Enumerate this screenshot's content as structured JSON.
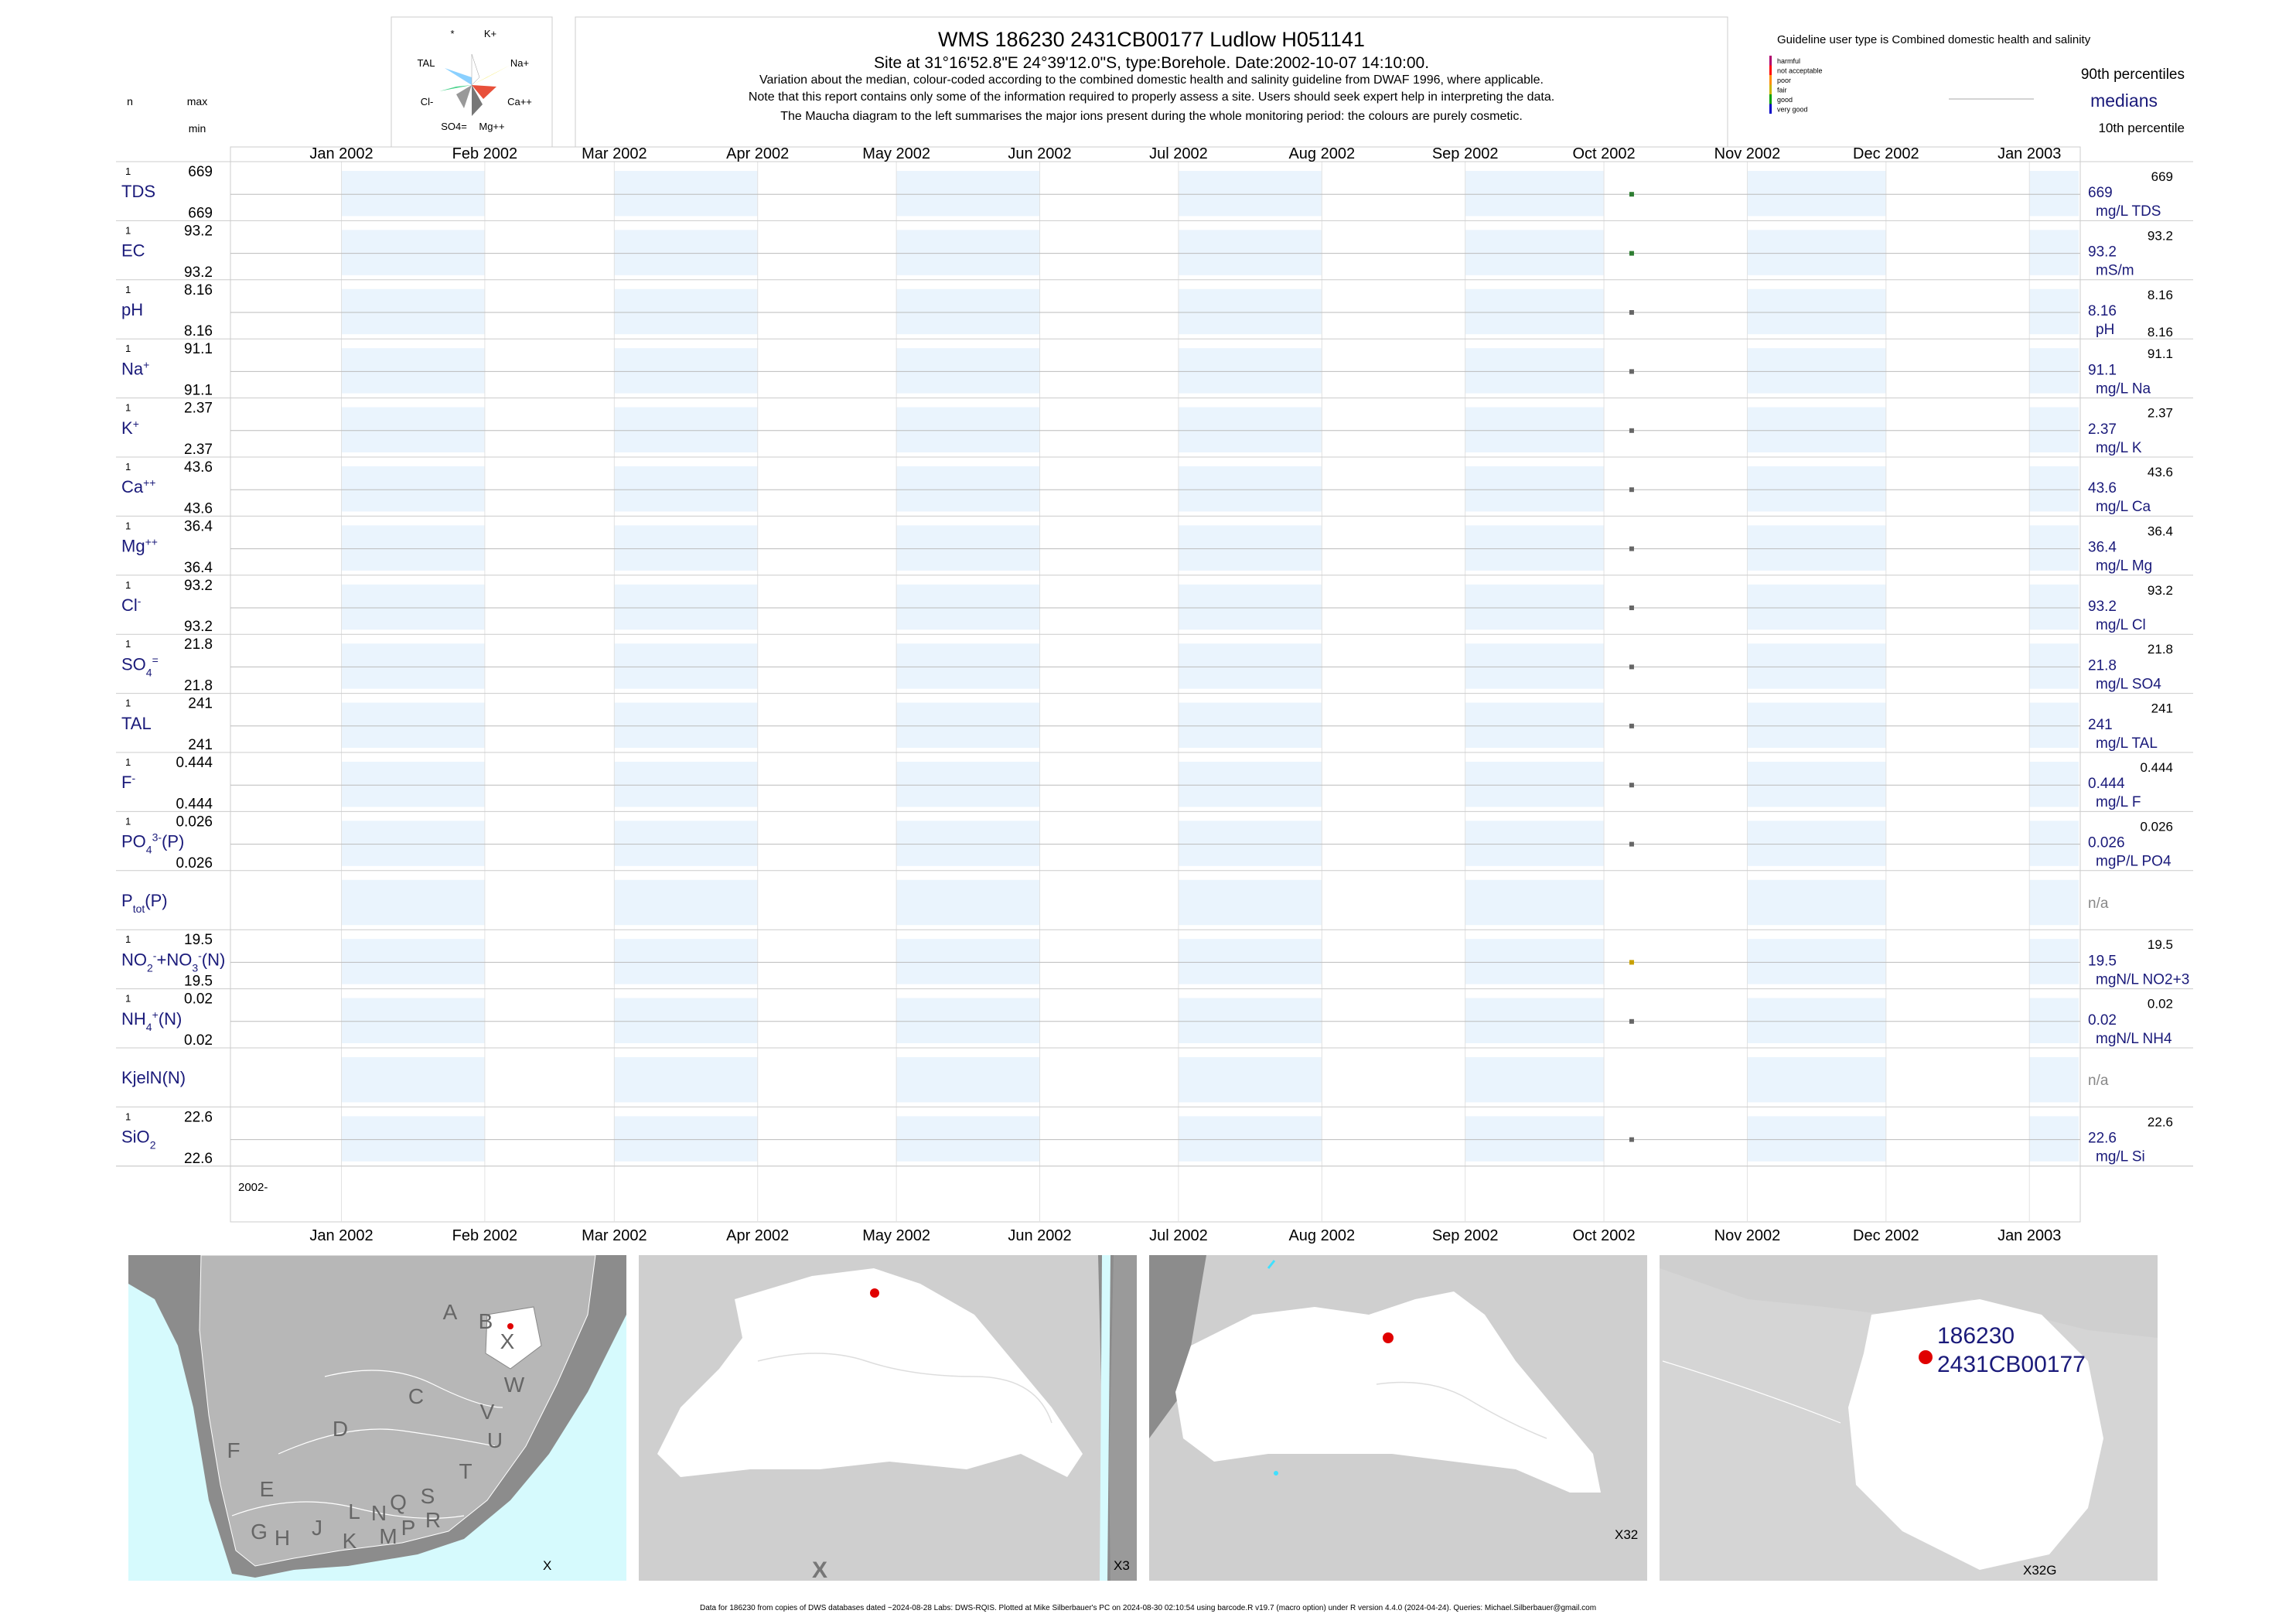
{
  "header": {
    "title": "WMS 186230 2431CB00177 Ludlow H051141",
    "subtitle": "Site at 31°16'52.8\"E 24°39'12.0\"S, type:Borehole. Date:2002-10-07 14:10:00.",
    "note1": "Variation about the median,  colour-coded according to the combined domestic health and salinity guideline from DWAF 1996, where applicable.",
    "note2": "Note that this report contains only some of the information required to properly assess a site. Users should seek expert help in interpreting the data.",
    "note3": "The Maucha diagram to the left summarises the major ions present during the whole monitoring period: the colours are purely cosmetic."
  },
  "maucha": {
    "labels": [
      "*",
      "K+",
      "TAL",
      "Na+",
      "Cl-",
      "Ca++",
      "SO4=",
      "Mg++"
    ]
  },
  "legend": {
    "guideline_text": "Guideline user type is Combined domestic health and salinity",
    "classes": [
      {
        "label": "harmful",
        "color": "#b0006e"
      },
      {
        "label": "not acceptable",
        "color": "#ff0000"
      },
      {
        "label": "poor",
        "color": "#ff8c00"
      },
      {
        "label": "fair",
        "color": "#c8b400"
      },
      {
        "label": "good",
        "color": "#00a000"
      },
      {
        "label": "very good",
        "color": "#0000c8"
      }
    ],
    "p90": "90th percentiles",
    "medians": "medians",
    "p10": "10th percentile"
  },
  "left_head": {
    "n": "n",
    "max": "max",
    "min": "min"
  },
  "chart_data": {
    "type": "scatter",
    "x_axis_labels": [
      "Jan 2002",
      "Feb 2002",
      "Mar 2002",
      "Apr 2002",
      "May 2002",
      "Jun 2002",
      "Jul 2002",
      "Aug 2002",
      "Sep 2002",
      "Oct 2002",
      "Nov 2002",
      "Dec 2002",
      "Jan 2003"
    ],
    "year_label": "2002-",
    "sample_date": "2002-10-07",
    "variables": [
      {
        "label": "TDS",
        "n": "1",
        "max": "669",
        "min": "669",
        "value": 669,
        "median": "669",
        "p90": "669",
        "p10": "",
        "unit": "mg/L TDS",
        "color": "#2e7d32"
      },
      {
        "label": "EC",
        "n": "1",
        "max": "93.2",
        "min": "93.2",
        "value": 93.2,
        "median": "93.2",
        "p90": "93.2",
        "p10": "",
        "unit": "mS/m",
        "color": "#2e7d32"
      },
      {
        "label": "pH",
        "n": "1",
        "max": "8.16",
        "min": "8.16",
        "value": 8.16,
        "median": "8.16",
        "p90": "8.16",
        "p10": "8.16",
        "unit": "pH",
        "color": "#666666"
      },
      {
        "label": "Na",
        "sup": "+",
        "n": "1",
        "max": "91.1",
        "min": "91.1",
        "value": 91.1,
        "median": "91.1",
        "p90": "91.1",
        "p10": "",
        "unit": "mg/L Na",
        "color": "#666666"
      },
      {
        "label": "K",
        "sup": "+",
        "n": "1",
        "max": "2.37",
        "min": "2.37",
        "value": 2.37,
        "median": "2.37",
        "p90": "2.37",
        "p10": "",
        "unit": "mg/L K",
        "color": "#666666"
      },
      {
        "label": "Ca",
        "sup": "++",
        "n": "1",
        "max": "43.6",
        "min": "43.6",
        "value": 43.6,
        "median": "43.6",
        "p90": "43.6",
        "p10": "",
        "unit": "mg/L Ca",
        "color": "#666666"
      },
      {
        "label": "Mg",
        "sup": "++",
        "n": "1",
        "max": "36.4",
        "min": "36.4",
        "value": 36.4,
        "median": "36.4",
        "p90": "36.4",
        "p10": "",
        "unit": "mg/L Mg",
        "color": "#666666"
      },
      {
        "label": "Cl",
        "sup": "-",
        "n": "1",
        "max": "93.2",
        "min": "93.2",
        "value": 93.2,
        "median": "93.2",
        "p90": "93.2",
        "p10": "",
        "unit": "mg/L Cl",
        "color": "#666666"
      },
      {
        "label": "SO",
        "sub": "4",
        "sup": "=",
        "n": "1",
        "max": "21.8",
        "min": "21.8",
        "value": 21.8,
        "median": "21.8",
        "p90": "21.8",
        "p10": "",
        "unit": "mg/L SO4",
        "color": "#666666"
      },
      {
        "label": "TAL",
        "n": "1",
        "max": "241",
        "min": "241",
        "value": 241,
        "median": "241",
        "p90": "241",
        "p10": "",
        "unit": "mg/L TAL",
        "color": "#666666"
      },
      {
        "label": "F",
        "sup": "-",
        "n": "1",
        "max": "0.444",
        "min": "0.444",
        "value": 0.444,
        "median": "0.444",
        "p90": "0.444",
        "p10": "",
        "unit": "mg/L F",
        "color": "#666666"
      },
      {
        "label": "PO",
        "sub": "4",
        "sup": "3-",
        "tail": "(P)",
        "n": "1",
        "max": "0.026",
        "min": "0.026",
        "value": 0.026,
        "median": "0.026",
        "p90": "0.026",
        "p10": "",
        "unit": "mgP/L PO4",
        "color": "#666666"
      },
      {
        "label": "P",
        "sub": "tot",
        "tail": "(P)",
        "n": "",
        "max": "",
        "min": "",
        "value": null,
        "median": "n/a",
        "p90": "",
        "p10": "",
        "unit": "",
        "color": "#666666"
      },
      {
        "label": "NO",
        "sub": "2",
        "sup": "-",
        "tail": "+NO",
        "sub2": "3",
        "sup2": "-",
        "tail2": "(N)",
        "n": "1",
        "max": "19.5",
        "min": "19.5",
        "value": 19.5,
        "median": "19.5",
        "p90": "19.5",
        "p10": "",
        "unit": "mgN/L NO2+3",
        "color": "#c8a000"
      },
      {
        "label": "NH",
        "sub": "4",
        "sup": "+",
        "tail": "(N)",
        "n": "1",
        "max": "0.02",
        "min": "0.02",
        "value": 0.02,
        "median": "0.02",
        "p90": "0.02",
        "p10": "",
        "unit": "mgN/L NH4",
        "color": "#666666"
      },
      {
        "label": "KjelN(N)",
        "n": "",
        "max": "",
        "min": "",
        "value": null,
        "median": "n/a",
        "p90": "",
        "p10": "",
        "unit": "",
        "color": "#666666"
      },
      {
        "label": "SiO",
        "sub": "2",
        "n": "1",
        "max": "22.6",
        "min": "22.6",
        "value": 22.6,
        "median": "22.6",
        "p90": "22.6",
        "p10": "",
        "unit": "mg/L Si",
        "color": "#666666"
      }
    ]
  },
  "maps": {
    "map1": {
      "label": "X",
      "regions": [
        "A",
        "B",
        "X",
        "C",
        "W",
        "D",
        "V",
        "U",
        "F",
        "T",
        "E",
        "L",
        "N",
        "Q",
        "S",
        "J",
        "R",
        "G",
        "H",
        "K",
        "M",
        "P"
      ]
    },
    "map2": {
      "label": "X3",
      "marker": "X"
    },
    "map3": {
      "label": "X32"
    },
    "map4": {
      "label": "X32G",
      "site_id": "186230",
      "site_code": "2431CB00177"
    }
  },
  "footer": "Data for 186230 from copies of DWS databases dated ~2024-08-28 Labs: DWS-RQIS. Plotted at Mike Silberbauer's PC on 2024-08-30 02:10:54 using barcode.R v19.7 (macro option) under R version 4.4.0 (2024-04-24). Queries: Michael.Silberbauer@gmail.com"
}
